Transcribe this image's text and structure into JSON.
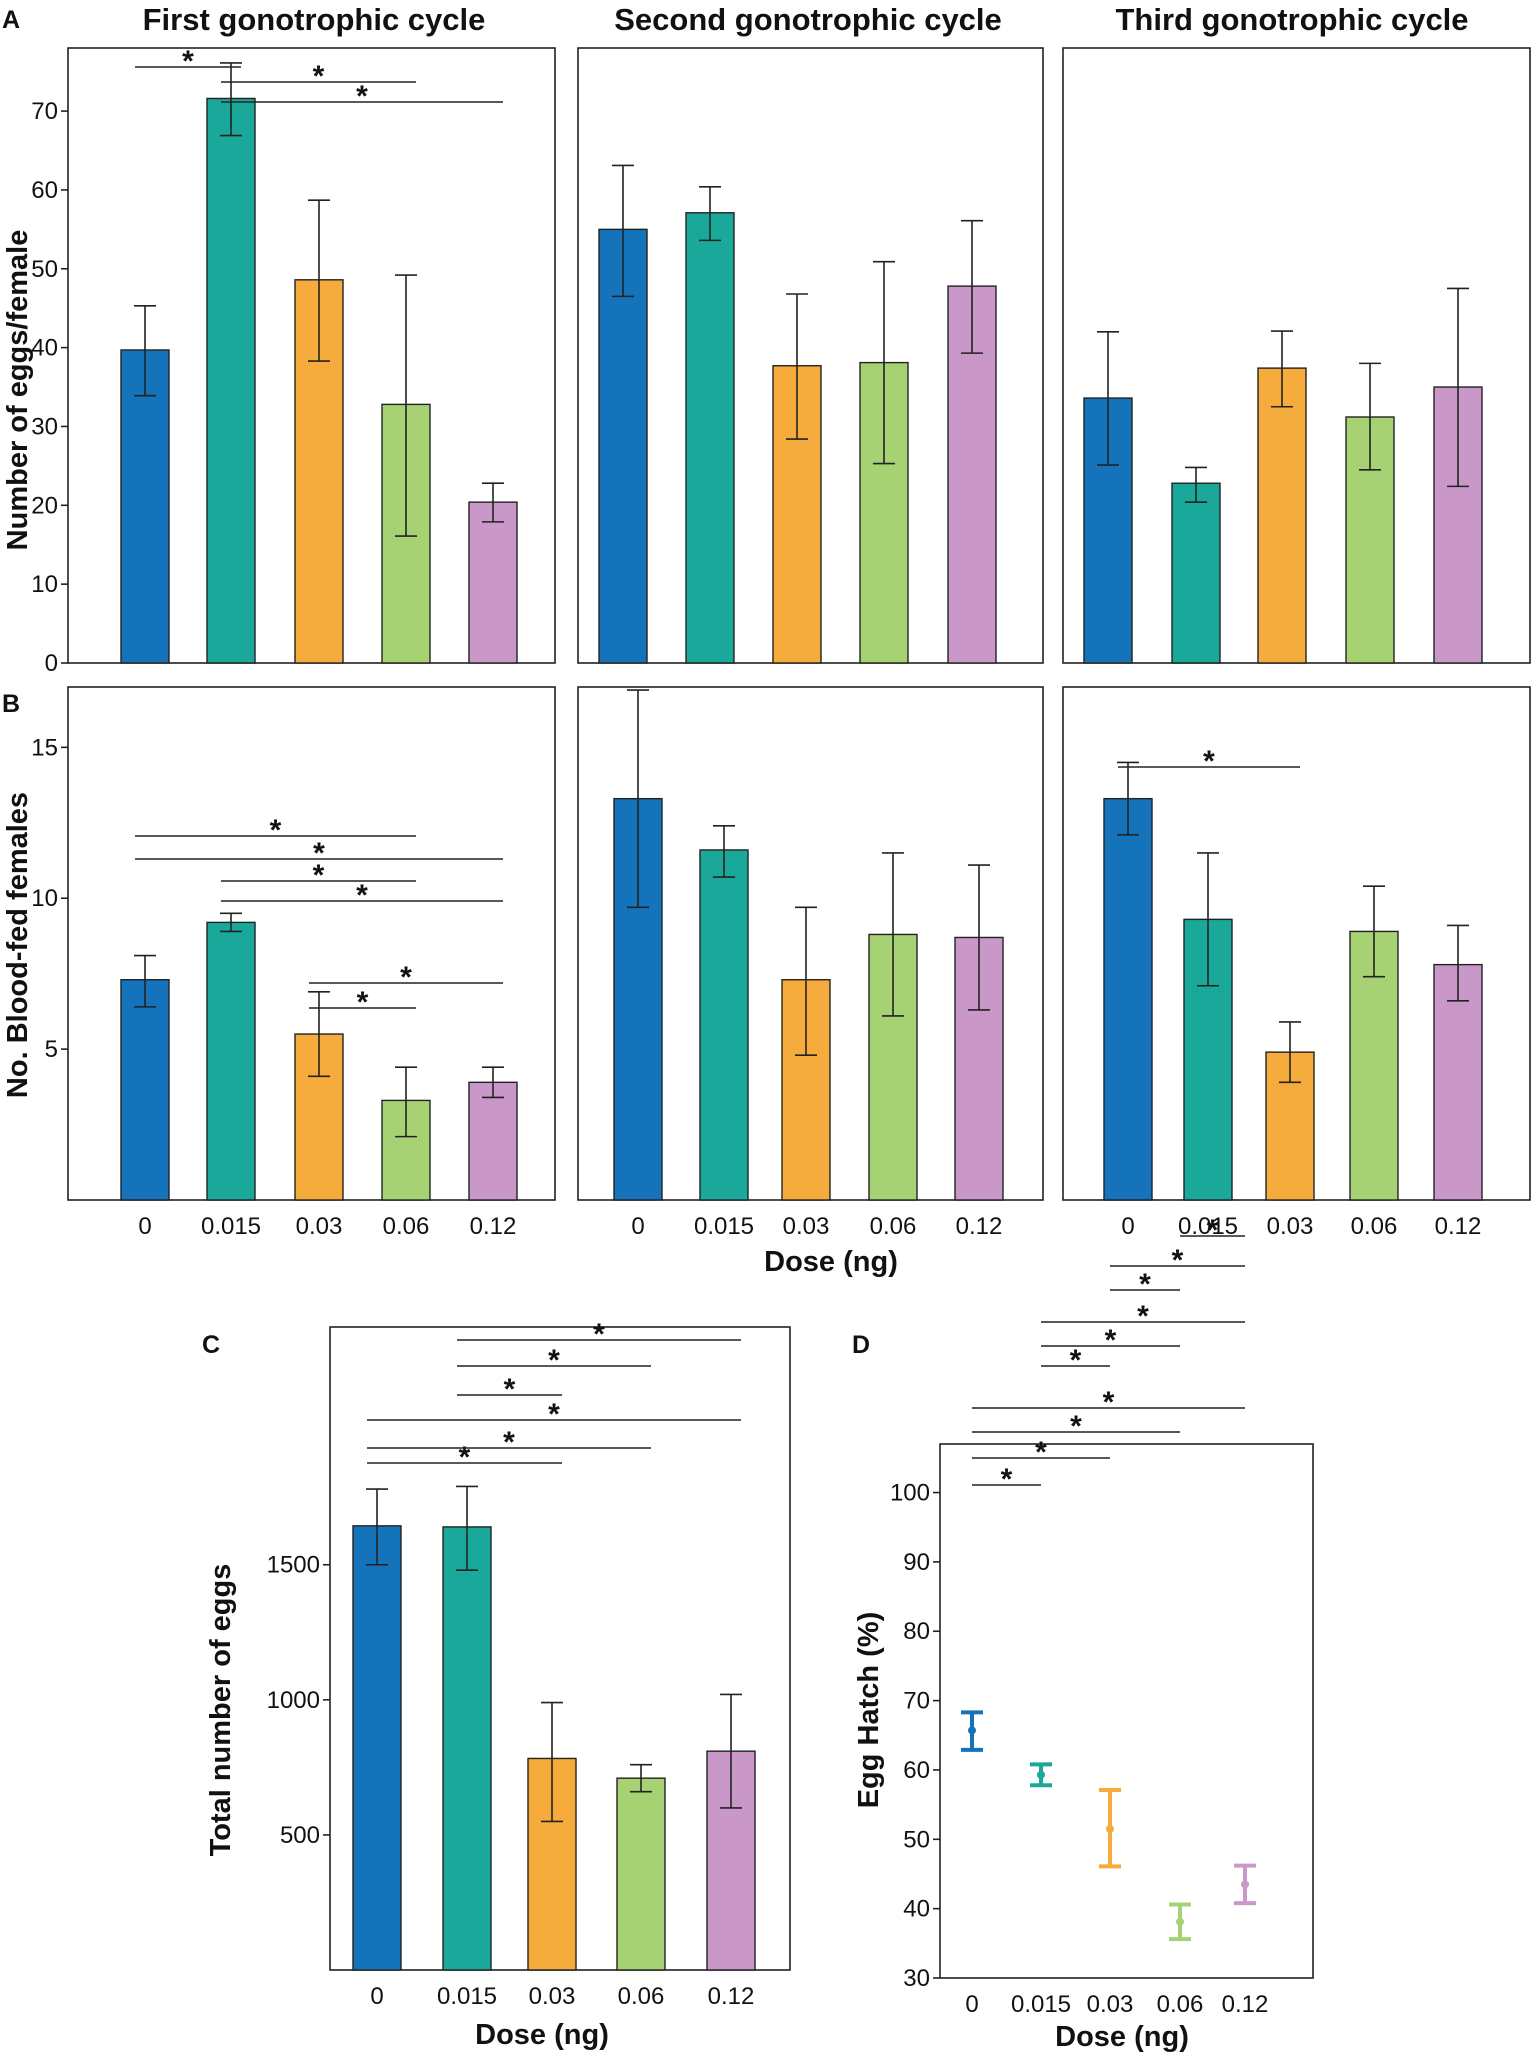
{
  "colors": {
    "0": "#1473bb",
    "0.015": "#1aa89a",
    "0.03": "#f6ac3c",
    "0.06": "#a6d273",
    "0.12": "#c998c8"
  },
  "chart_data": [
    {
      "id": "A1",
      "panel_label": "A",
      "type": "bar",
      "title": "First gonotrophic cycle",
      "ylabel": "Number of eggs/female",
      "xlabel": "",
      "ylim": [
        0,
        78
      ],
      "yticks": [
        0,
        10,
        20,
        30,
        40,
        50,
        60,
        70
      ],
      "categories": [
        "0",
        "0.015",
        "0.03",
        "0.06",
        "0.12"
      ],
      "values": [
        39.7,
        71.6,
        48.6,
        32.8,
        20.4
      ],
      "errors": [
        [
          33.9,
          45.3
        ],
        [
          66.9,
          76.1
        ],
        [
          38.3,
          58.7
        ],
        [
          16.1,
          49.2
        ],
        [
          17.9,
          22.8
        ]
      ],
      "significance": [
        [
          0,
          1,
          "*"
        ],
        [
          1,
          3,
          "*"
        ],
        [
          1,
          4,
          "*"
        ]
      ]
    },
    {
      "id": "A2",
      "panel_label": "",
      "type": "bar",
      "title": "Second gonotrophic cycle",
      "ylabel": "",
      "xlabel": "",
      "ylim": [
        0,
        78
      ],
      "yticks": [],
      "categories": [
        "0",
        "0.015",
        "0.03",
        "0.06",
        "0.12"
      ],
      "values": [
        55.0,
        57.1,
        37.7,
        38.1,
        47.8
      ],
      "errors": [
        [
          46.5,
          63.1
        ],
        [
          53.6,
          60.4
        ],
        [
          28.4,
          46.8
        ],
        [
          25.3,
          50.9
        ],
        [
          39.3,
          56.1
        ]
      ],
      "significance": []
    },
    {
      "id": "A3",
      "panel_label": "",
      "type": "bar",
      "title": "Third gonotrophic cycle",
      "ylabel": "",
      "xlabel": "",
      "ylim": [
        0,
        78
      ],
      "yticks": [],
      "categories": [
        "0",
        "0.015",
        "0.03",
        "0.06",
        "0.12"
      ],
      "values": [
        33.6,
        22.8,
        37.4,
        31.2,
        35.0
      ],
      "errors": [
        [
          25.1,
          42.0
        ],
        [
          20.4,
          24.8
        ],
        [
          32.5,
          42.1
        ],
        [
          24.5,
          38.0
        ],
        [
          22.4,
          47.5
        ]
      ],
      "significance": []
    },
    {
      "id": "B1",
      "panel_label": "B",
      "type": "bar",
      "title": "",
      "ylabel": "No. Blood-fed females",
      "xlabel": "",
      "ylim": [
        0,
        17
      ],
      "yticks": [
        5,
        10,
        15
      ],
      "categories": [
        "0",
        "0.015",
        "0.03",
        "0.06",
        "0.12"
      ],
      "values": [
        7.3,
        9.2,
        5.5,
        3.3,
        3.9
      ],
      "errors": [
        [
          6.4,
          8.1
        ],
        [
          8.9,
          9.5
        ],
        [
          4.1,
          6.9
        ],
        [
          2.1,
          4.4
        ],
        [
          3.4,
          4.4
        ]
      ],
      "significance": [
        [
          0,
          3,
          "*"
        ],
        [
          0,
          4,
          "*"
        ],
        [
          1,
          3,
          "*"
        ],
        [
          1,
          4,
          "*"
        ],
        [
          2,
          4,
          "*"
        ],
        [
          2,
          3,
          "*"
        ]
      ]
    },
    {
      "id": "B2",
      "panel_label": "",
      "type": "bar",
      "title": "",
      "ylabel": "",
      "xlabel": "",
      "ylim": [
        0,
        17
      ],
      "yticks": [],
      "categories": [
        "0",
        "0.015",
        "0.03",
        "0.06",
        "0.12"
      ],
      "values": [
        13.3,
        11.6,
        7.3,
        8.8,
        8.7
      ],
      "errors": [
        [
          9.7,
          16.9
        ],
        [
          10.7,
          12.4
        ],
        [
          4.8,
          9.7
        ],
        [
          6.1,
          11.5
        ],
        [
          6.3,
          11.1
        ]
      ],
      "significance": []
    },
    {
      "id": "B3",
      "panel_label": "",
      "type": "bar",
      "title": "",
      "ylabel": "",
      "xlabel": "",
      "ylim": [
        0,
        17
      ],
      "yticks": [],
      "categories": [
        "0",
        "0.015",
        "0.03",
        "0.06",
        "0.12"
      ],
      "values": [
        13.3,
        9.3,
        4.9,
        8.9,
        7.8
      ],
      "errors": [
        [
          12.1,
          14.5
        ],
        [
          7.1,
          11.5
        ],
        [
          3.9,
          5.9
        ],
        [
          7.4,
          10.4
        ],
        [
          6.6,
          9.1
        ]
      ],
      "significance": [
        [
          0,
          2,
          "*"
        ]
      ]
    },
    {
      "id": "C",
      "panel_label": "C",
      "type": "bar",
      "title": "",
      "ylabel": "Total number of eggs",
      "xlabel": "Dose (ng)",
      "ylim": [
        0,
        2380
      ],
      "yticks": [
        500,
        1000,
        1500
      ],
      "categories": [
        "0",
        "0.015",
        "0.03",
        "0.06",
        "0.12"
      ],
      "values": [
        1644,
        1640,
        783,
        710,
        810
      ],
      "errors": [
        [
          1500,
          1780
        ],
        [
          1480,
          1790
        ],
        [
          550,
          990
        ],
        [
          660,
          760
        ],
        [
          600,
          1020
        ]
      ],
      "significance": [
        [
          0,
          2,
          "*"
        ],
        [
          0,
          3,
          "*"
        ],
        [
          0,
          4,
          "*"
        ],
        [
          1,
          2,
          "*"
        ],
        [
          1,
          3,
          "*"
        ],
        [
          1,
          4,
          "*"
        ]
      ]
    },
    {
      "id": "D",
      "panel_label": "D",
      "type": "scatter",
      "title": "",
      "ylabel": "Egg Hatch (%)",
      "xlabel": "Dose (ng)",
      "ylim": [
        30,
        107
      ],
      "yticks": [
        30,
        40,
        50,
        60,
        70,
        80,
        90,
        100
      ],
      "categories": [
        "0",
        "0.015",
        "0.03",
        "0.06",
        "0.12"
      ],
      "values": [
        65.7,
        59.3,
        51.5,
        38.1,
        43.5
      ],
      "errors": [
        [
          62.9,
          68.3
        ],
        [
          57.8,
          60.8
        ],
        [
          46.1,
          57.1
        ],
        [
          35.6,
          40.6
        ],
        [
          40.8,
          46.2
        ]
      ],
      "significance": [
        [
          0,
          1,
          "*"
        ],
        [
          0,
          2,
          "*"
        ],
        [
          0,
          3,
          "*"
        ],
        [
          0,
          4,
          "*"
        ],
        [
          1,
          2,
          "*"
        ],
        [
          1,
          3,
          "*"
        ],
        [
          1,
          4,
          "*"
        ],
        [
          2,
          3,
          "*"
        ],
        [
          2,
          4,
          "*"
        ],
        [
          3,
          4,
          "*"
        ]
      ]
    }
  ],
  "shared_xlabel_AB": "Dose (ng)"
}
